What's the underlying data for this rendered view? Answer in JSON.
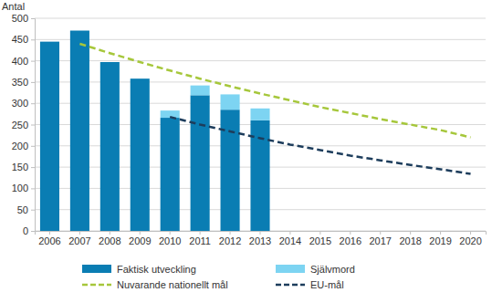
{
  "chart_data": {
    "type": "bar",
    "y_label": "Antal",
    "categories": [
      "2006",
      "2007",
      "2008",
      "2009",
      "2010",
      "2011",
      "2012",
      "2013",
      "2014",
      "2015",
      "2016",
      "2017",
      "2018",
      "2019",
      "2020"
    ],
    "stacked": true,
    "grid": true,
    "legend": "bottom",
    "ylim": [
      0,
      500
    ],
    "yticks": [
      0,
      50,
      100,
      150,
      200,
      250,
      300,
      350,
      400,
      450,
      500
    ],
    "series": [
      {
        "name": "Faktisk utveckling",
        "type": "bar",
        "color": "#0a7db3",
        "values": [
          445,
          471,
          397,
          358,
          266,
          319,
          285,
          260,
          null,
          null,
          null,
          null,
          null,
          null,
          null
        ]
      },
      {
        "name": "Självmord",
        "type": "bar",
        "color": "#7dd4f2",
        "values": [
          null,
          null,
          null,
          null,
          17,
          23,
          36,
          28,
          null,
          null,
          null,
          null,
          null,
          null,
          null
        ]
      },
      {
        "name": "Nuvarande nationellt mål",
        "type": "line",
        "line_style": "dashed",
        "color": "#a6c73b",
        "values": [
          null,
          440,
          418,
          397,
          377,
          358,
          340,
          323,
          307,
          291,
          277,
          263,
          250,
          237,
          220
        ]
      },
      {
        "name": "EU-mål",
        "type": "line",
        "line_style": "dashed",
        "color": "#1d3d5c",
        "values": [
          null,
          null,
          null,
          null,
          268,
          250,
          234,
          218,
          203,
          190,
          177,
          166,
          155,
          145,
          134
        ]
      }
    ]
  }
}
